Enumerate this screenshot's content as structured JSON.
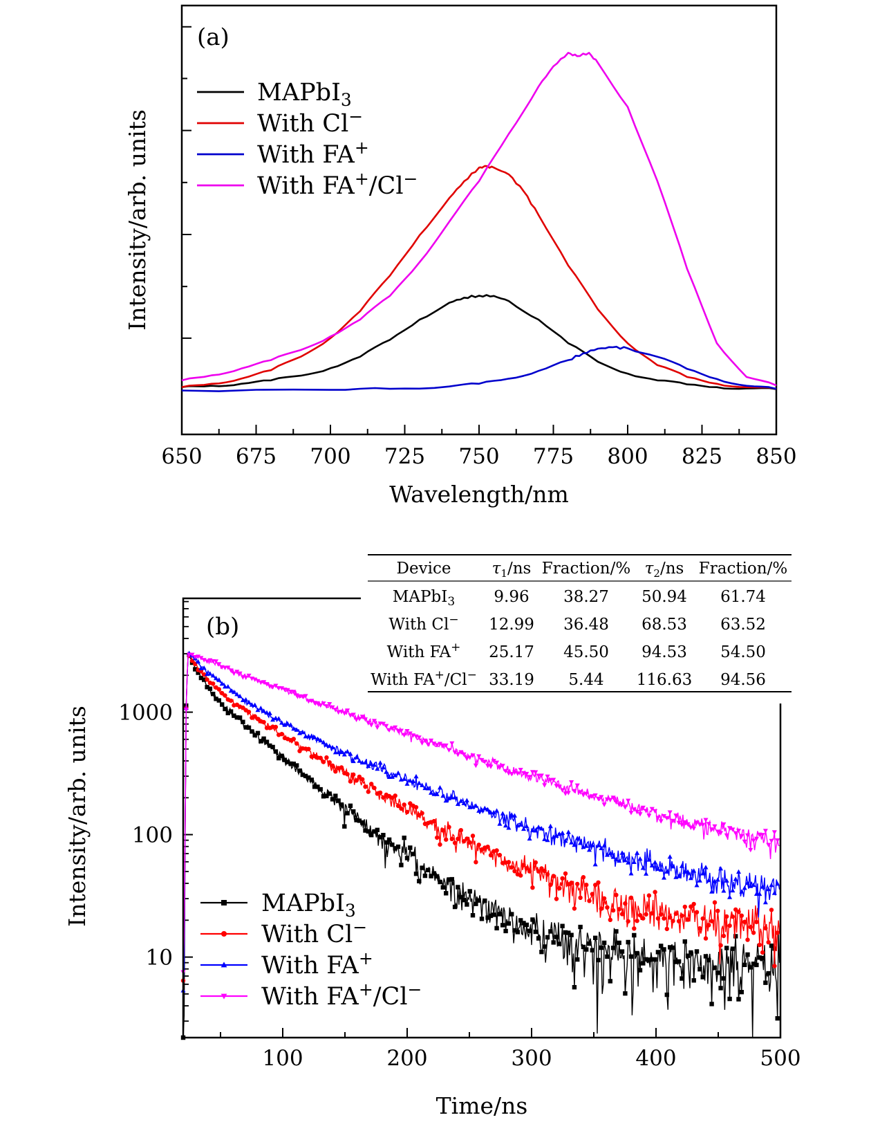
{
  "chart_data": [
    {
      "panel_label": "(a)",
      "type": "line",
      "xlabel": "Wavelength/nm",
      "ylabel": "Intensity/arb. units",
      "xlim": [
        650,
        850
      ],
      "ylim": [
        -0.13,
        1.14
      ],
      "x_ticks": [
        "650",
        "675",
        "700",
        "725",
        "750",
        "775",
        "800",
        "825",
        "850"
      ],
      "y_ticks_labeled": false,
      "legend_position": "upper-left",
      "series": [
        {
          "name": "MAPbI3",
          "color": "#000000",
          "x": [
            650,
            660,
            670,
            680,
            690,
            700,
            710,
            720,
            730,
            740,
            745,
            750,
            755,
            760,
            770,
            780,
            790,
            800,
            810,
            820,
            830,
            840,
            850
          ],
          "y": [
            0.01,
            0.014,
            0.02,
            0.03,
            0.044,
            0.066,
            0.1,
            0.15,
            0.21,
            0.26,
            0.275,
            0.281,
            0.28,
            0.265,
            0.21,
            0.14,
            0.085,
            0.05,
            0.03,
            0.018,
            0.01,
            0.006,
            0.004
          ]
        },
        {
          "name": "With Cl⁻",
          "color": "#e00000",
          "x": [
            650,
            660,
            670,
            680,
            690,
            700,
            710,
            720,
            730,
            740,
            745,
            750,
            752,
            755,
            760,
            765,
            770,
            780,
            790,
            800,
            810,
            820,
            830,
            840,
            850
          ],
          "y": [
            0.01,
            0.02,
            0.035,
            0.06,
            0.1,
            0.155,
            0.235,
            0.34,
            0.46,
            0.57,
            0.62,
            0.66,
            0.665,
            0.66,
            0.64,
            0.59,
            0.52,
            0.37,
            0.24,
            0.14,
            0.075,
            0.04,
            0.02,
            0.01,
            0.005
          ]
        },
        {
          "name": "With FA⁺",
          "color": "#0000cc",
          "x": [
            650,
            700,
            720,
            740,
            750,
            760,
            770,
            780,
            785,
            790,
            795,
            800,
            810,
            820,
            830,
            840,
            850
          ],
          "y": [
            0.0,
            0.002,
            0.005,
            0.012,
            0.02,
            0.035,
            0.058,
            0.09,
            0.11,
            0.124,
            0.128,
            0.125,
            0.1,
            0.064,
            0.034,
            0.014,
            0.005
          ]
        },
        {
          "name": "With FA⁺/Cl⁻",
          "color": "#ee00ee",
          "x": [
            650,
            660,
            670,
            680,
            690,
            700,
            710,
            720,
            730,
            740,
            750,
            760,
            770,
            775,
            780,
            783,
            787,
            790,
            800,
            810,
            820,
            830,
            840,
            850
          ],
          "y": [
            0.03,
            0.045,
            0.065,
            0.09,
            0.12,
            0.16,
            0.21,
            0.28,
            0.38,
            0.5,
            0.62,
            0.76,
            0.9,
            0.96,
            1.0,
            0.99,
            1.0,
            0.97,
            0.84,
            0.62,
            0.36,
            0.14,
            0.04,
            0.015
          ]
        }
      ]
    },
    {
      "panel_label": "(b)",
      "type": "scatter",
      "xlabel": "Time/ns",
      "ylabel": "Intensity/arb. units",
      "xlim": [
        20,
        500
      ],
      "ylim": [
        2.2,
        8500
      ],
      "y_scale": "log",
      "x_ticks": [
        "100",
        "200",
        "300",
        "400",
        "500"
      ],
      "y_ticks": [
        "10",
        "100",
        "1000"
      ],
      "legend_position": "lower-left",
      "peak_time_ns": 24,
      "series": [
        {
          "name": "MAPbI3",
          "color": "#000000",
          "marker": "square",
          "amplitude": 3000,
          "fractions": [
            0.3827,
            0.6174
          ],
          "taus": [
            9.96,
            50.94
          ],
          "floor": 8
        },
        {
          "name": "With Cl⁻",
          "color": "#ff0000",
          "marker": "circle",
          "amplitude": 3000,
          "fractions": [
            0.3648,
            0.6352
          ],
          "taus": [
            12.99,
            68.53
          ],
          "floor": 15
        },
        {
          "name": "With FA⁺",
          "color": "#0000ff",
          "marker": "triangle-up",
          "amplitude": 3000,
          "fractions": [
            0.455,
            0.545
          ],
          "taus": [
            25.17,
            94.53
          ],
          "floor": 25
        },
        {
          "name": "With FA⁺/Cl⁻",
          "color": "#ff00ff",
          "marker": "triangle-down",
          "amplitude": 3000,
          "fractions": [
            0.0544,
            0.9456
          ],
          "taus": [
            33.19,
            116.63
          ],
          "floor": 35
        }
      ],
      "table": {
        "headers": [
          "Device",
          "τ1/ns",
          "Fraction/%",
          "τ2/ns",
          "Fraction/%"
        ],
        "rows": [
          [
            "MAPbI3",
            "9.96",
            "38.27",
            "50.94",
            "61.74"
          ],
          [
            "With Cl⁻",
            "12.99",
            "36.48",
            "68.53",
            "63.52"
          ],
          [
            "With FA⁺",
            "25.17",
            "45.50",
            "94.53",
            "54.50"
          ],
          [
            "With FA⁺/Cl⁻",
            "33.19",
            "5.44",
            "116.63",
            "94.56"
          ]
        ]
      }
    }
  ]
}
